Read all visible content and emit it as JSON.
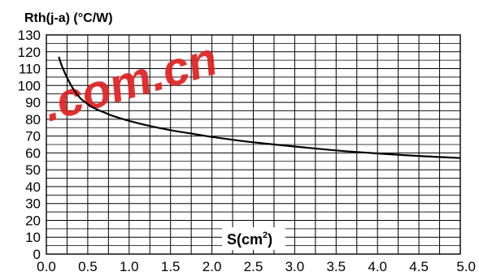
{
  "chart_data": {
    "type": "line",
    "ylabel": "Rth(j-a) (°C/W)",
    "xlabel_base": "S(cm",
    "xlabel_sup": "2",
    "xlabel_close": ")",
    "xlim": [
      0,
      5
    ],
    "ylim": [
      0,
      130
    ],
    "x_ticks": [
      "0.0",
      "0.5",
      "1.0",
      "1.5",
      "2.0",
      "2.5",
      "3.0",
      "3.5",
      "4.0",
      "4.5",
      "5.0"
    ],
    "y_ticks": [
      "0",
      "10",
      "20",
      "30",
      "40",
      "50",
      "60",
      "70",
      "80",
      "90",
      "100",
      "110",
      "120",
      "130"
    ],
    "grid": true,
    "series": [
      {
        "x": [
          0.15,
          0.2,
          0.3,
          0.4,
          0.5,
          0.6,
          0.7,
          0.8,
          1.0,
          1.25,
          1.5,
          1.75,
          2.0,
          2.25,
          2.5,
          3.0,
          3.5,
          4.0,
          4.5,
          5.0
        ],
        "y": [
          117,
          110,
          100,
          93,
          89,
          86,
          84,
          82,
          79,
          76,
          73.5,
          71.5,
          69.5,
          67.8,
          66.3,
          63.8,
          61.5,
          59.7,
          58.2,
          57
        ]
      }
    ],
    "line_color": "#000000",
    "watermark": ".com.cn",
    "watermark_color": "#e02020"
  }
}
